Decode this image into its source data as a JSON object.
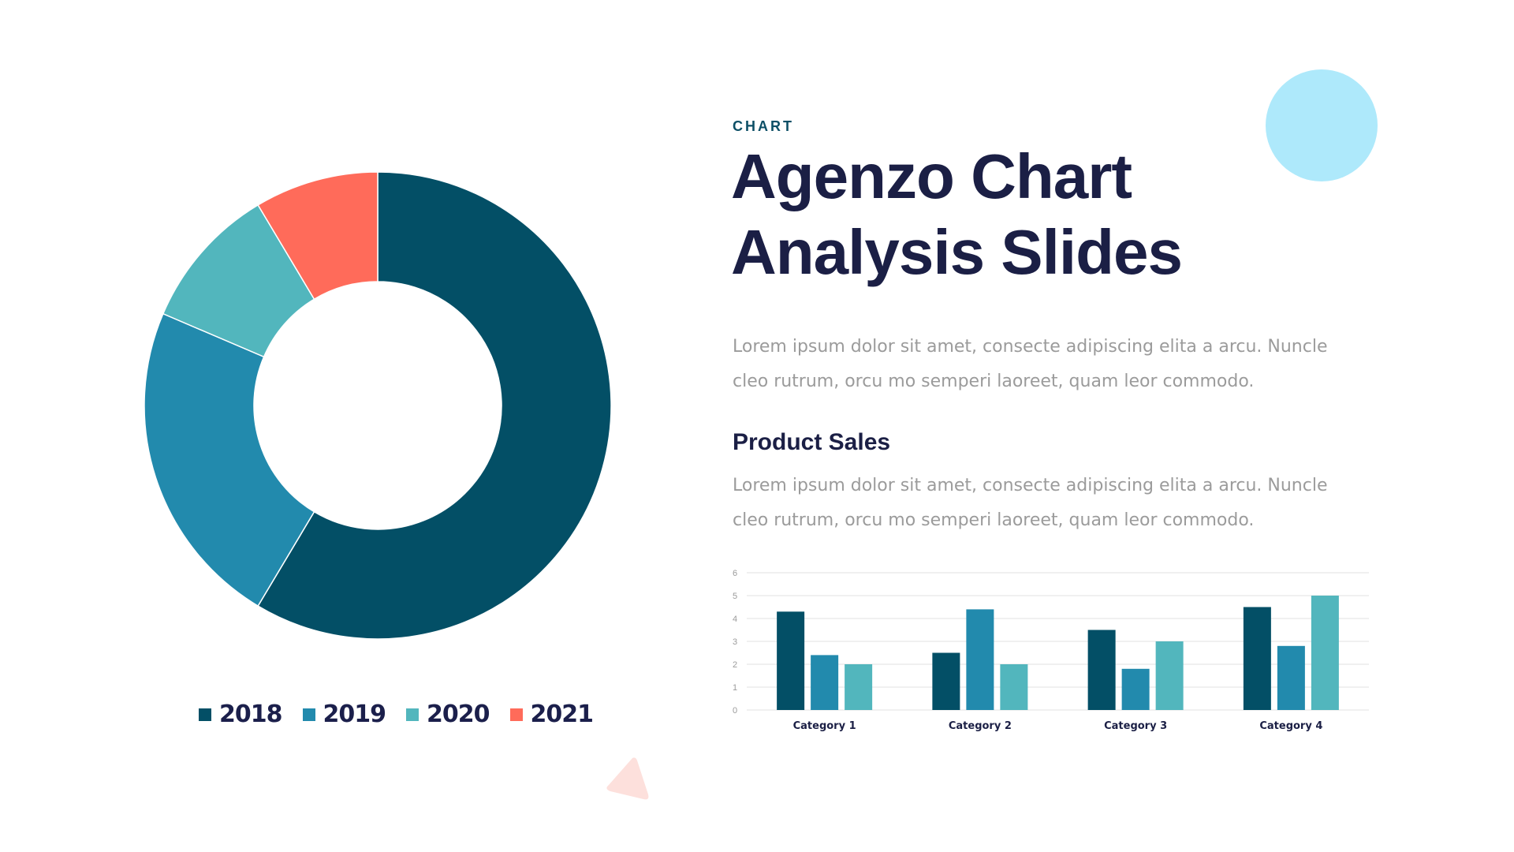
{
  "header": {
    "eyebrow": "CHART",
    "title_line1": "Agenzo Chart",
    "title_line2": "Analysis Slides"
  },
  "intro_text": "Lorem ipsum dolor sit amet, consecte adipiscing elita a arcu. Nuncle cleo rutrum, orcu mo semperi laoreet, quam leor commodo.",
  "product_sales": {
    "heading": "Product Sales",
    "text": "Lorem ipsum dolor sit amet, consecte adipiscing elita a arcu. Nuncle cleo rutrum, orcu mo semperi laoreet, quam leor commodo."
  },
  "colors": {
    "2018": "#034f66",
    "2019": "#228aad",
    "2020": "#52b6bd",
    "2021": "#ff6b5a",
    "accent_circle": "#aee9fb",
    "accent_triangle": "#fde0dc"
  },
  "chart_data": [
    {
      "type": "pie",
      "donut": true,
      "categories": [
        "2018",
        "2019",
        "2020",
        "2021"
      ],
      "values": [
        8.2,
        3.2,
        1.4,
        1.2
      ],
      "colors": [
        "#034f66",
        "#228aad",
        "#52b6bd",
        "#ff6b5a"
      ],
      "legend": {
        "placement": "bottom",
        "entries": [
          "2018",
          "2019",
          "2020",
          "2021"
        ]
      }
    },
    {
      "type": "bar",
      "categories": [
        "Category 1",
        "Category 2",
        "Category 3",
        "Category 4"
      ],
      "series": [
        {
          "values": [
            4.3,
            2.5,
            3.5,
            4.5
          ],
          "color": "#034f66"
        },
        {
          "values": [
            2.4,
            4.4,
            1.8,
            2.8
          ],
          "color": "#228aad"
        },
        {
          "values": [
            2,
            2,
            3,
            5
          ],
          "color": "#52b6bd"
        }
      ],
      "ylim": [
        0,
        6
      ],
      "yticks": [
        "0",
        "1",
        "2",
        "3",
        "4",
        "5",
        "6"
      ],
      "grid": true
    }
  ]
}
